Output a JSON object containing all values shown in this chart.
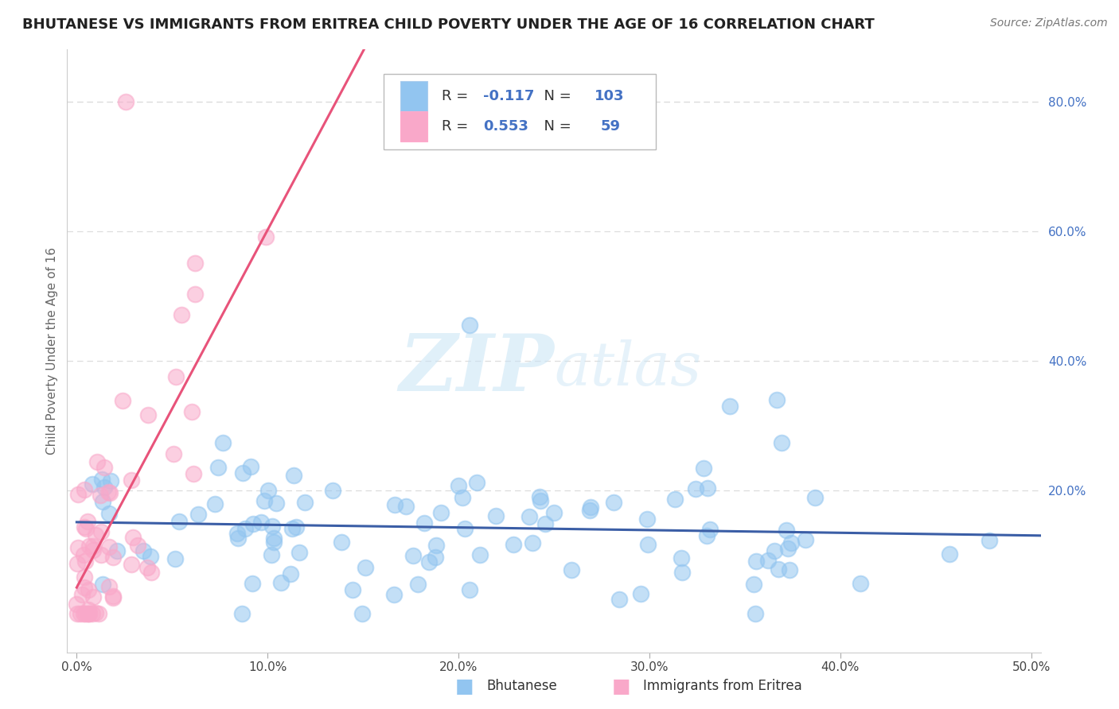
{
  "title": "BHUTANESE VS IMMIGRANTS FROM ERITREA CHILD POVERTY UNDER THE AGE OF 16 CORRELATION CHART",
  "source_text": "Source: ZipAtlas.com",
  "ylabel": "Child Poverty Under the Age of 16",
  "xlim": [
    -0.005,
    0.505
  ],
  "ylim": [
    -0.05,
    0.88
  ],
  "xtick_vals": [
    0.0,
    0.1,
    0.2,
    0.3,
    0.4,
    0.5
  ],
  "xtick_labels": [
    "0.0%",
    "10.0%",
    "20.0%",
    "30.0%",
    "40.0%",
    "50.0%"
  ],
  "ytick_vals": [
    0.2,
    0.4,
    0.6,
    0.8
  ],
  "ytick_labels": [
    "20.0%",
    "40.0%",
    "60.0%",
    "80.0%"
  ],
  "blue_color": "#92C5F0",
  "pink_color": "#F9A8C9",
  "trendline_blue": "#3B5EA6",
  "trendline_pink": "#E8537A",
  "R_blue": -0.117,
  "N_blue": 103,
  "R_pink": 0.553,
  "N_pink": 59,
  "legend_label_blue": "Bhutanese",
  "legend_label_pink": "Immigrants from Eritrea",
  "watermark_zip": "ZIP",
  "watermark_atlas": "atlas",
  "background_color": "#FFFFFF",
  "title_color": "#212121",
  "title_fontsize": 13,
  "axis_label_color": "#666666",
  "tick_color": "#4472C4",
  "grid_color": "#DDDDDD",
  "legend_R_color": "#333333",
  "legend_N_color": "#333333",
  "legend_val_color": "#4472C4"
}
